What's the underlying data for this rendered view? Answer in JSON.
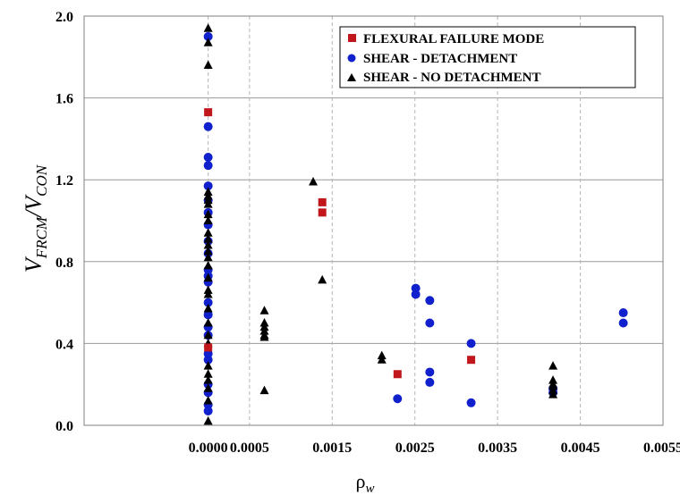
{
  "chart_data": {
    "type": "scatter",
    "title": "",
    "xlabel": "ρ",
    "xlabel_subscript": "w",
    "ylabel_parts": [
      "V",
      "FRCM",
      "/V",
      "CON"
    ],
    "xlim": [
      -0.0015,
      0.0055
    ],
    "ylim": [
      0,
      2.0
    ],
    "x_ticks": [
      0.0,
      0.0005,
      0.0015,
      0.0025,
      0.0035,
      0.0045,
      0.0055
    ],
    "x_tick_labels": [
      "0.0000",
      "0.0005",
      "0.0015",
      "0.0025",
      "0.0035",
      "0.0045",
      "0.0055"
    ],
    "y_ticks": [
      0.0,
      0.4,
      0.8,
      1.2,
      1.6,
      2.0
    ],
    "y_tick_labels": [
      "0.0",
      "0.4",
      "0.8",
      "1.2",
      "1.6",
      "2.0"
    ],
    "grid": {
      "x": "dashed",
      "y": "solid"
    },
    "legend_position": "top-right",
    "series": [
      {
        "name": "FLEXURAL FAILURE MODE",
        "marker": "square",
        "color": "#c0161c",
        "points": [
          [
            0,
            1.53
          ],
          [
            0,
            0.38
          ],
          [
            0.00138,
            1.09
          ],
          [
            0.00138,
            1.04
          ],
          [
            0.00229,
            0.25
          ],
          [
            0.00318,
            0.32
          ]
        ]
      },
      {
        "name": "SHEAR - DETACHMENT",
        "marker": "circle",
        "color": "#1020cc",
        "points": [
          [
            0,
            1.9
          ],
          [
            0,
            1.46
          ],
          [
            0,
            1.31
          ],
          [
            0,
            1.27
          ],
          [
            0,
            1.17
          ],
          [
            0,
            1.1
          ],
          [
            0,
            1.04
          ],
          [
            0,
            0.98
          ],
          [
            0,
            0.9
          ],
          [
            0,
            0.84
          ],
          [
            0,
            0.76
          ],
          [
            0,
            0.73
          ],
          [
            0,
            0.7
          ],
          [
            0,
            0.6
          ],
          [
            0,
            0.54
          ],
          [
            0,
            0.48
          ],
          [
            0,
            0.44
          ],
          [
            0,
            0.35
          ],
          [
            0,
            0.32
          ],
          [
            0,
            0.2
          ],
          [
            0,
            0.16
          ],
          [
            0,
            0.1
          ],
          [
            0,
            0.07
          ],
          [
            0.00229,
            0.13
          ],
          [
            0.00251,
            0.67
          ],
          [
            0.00251,
            0.64
          ],
          [
            0.00268,
            0.61
          ],
          [
            0.00268,
            0.5
          ],
          [
            0.00268,
            0.26
          ],
          [
            0.00268,
            0.21
          ],
          [
            0.00318,
            0.4
          ],
          [
            0.00318,
            0.11
          ],
          [
            0.00417,
            0.18
          ],
          [
            0.00417,
            0.16
          ],
          [
            0.00502,
            0.55
          ],
          [
            0.00502,
            0.5
          ]
        ]
      },
      {
        "name": "SHEAR - NO DETACHMENT",
        "marker": "triangle",
        "color": "#000000",
        "points": [
          [
            0,
            1.94
          ],
          [
            0,
            1.87
          ],
          [
            0,
            1.76
          ],
          [
            0,
            1.14
          ],
          [
            0,
            1.12
          ],
          [
            0,
            1.1
          ],
          [
            0,
            1.08
          ],
          [
            0,
            1.03
          ],
          [
            0,
            1.0
          ],
          [
            0,
            0.94
          ],
          [
            0,
            0.91
          ],
          [
            0,
            0.88
          ],
          [
            0,
            0.85
          ],
          [
            0,
            0.82
          ],
          [
            0,
            0.78
          ],
          [
            0,
            0.72
          ],
          [
            0,
            0.66
          ],
          [
            0,
            0.64
          ],
          [
            0,
            0.57
          ],
          [
            0,
            0.5
          ],
          [
            0,
            0.44
          ],
          [
            0,
            0.4
          ],
          [
            0,
            0.29
          ],
          [
            0,
            0.25
          ],
          [
            0,
            0.22
          ],
          [
            0,
            0.18
          ],
          [
            0,
            0.12
          ],
          [
            0,
            0.02
          ],
          [
            0.00068,
            0.56
          ],
          [
            0.00068,
            0.5
          ],
          [
            0.00068,
            0.48
          ],
          [
            0.00068,
            0.46
          ],
          [
            0.00068,
            0.44
          ],
          [
            0.00068,
            0.43
          ],
          [
            0.00068,
            0.17
          ],
          [
            0.00127,
            1.19
          ],
          [
            0.00138,
            0.71
          ],
          [
            0.0021,
            0.34
          ],
          [
            0.0021,
            0.32
          ],
          [
            0.00417,
            0.29
          ],
          [
            0.00417,
            0.22
          ],
          [
            0.00417,
            0.2
          ],
          [
            0.00417,
            0.19
          ],
          [
            0.00417,
            0.17
          ],
          [
            0.00417,
            0.15
          ]
        ]
      }
    ]
  }
}
